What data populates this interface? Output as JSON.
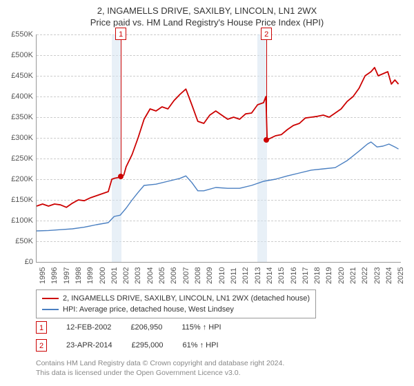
{
  "title": {
    "line1": "2, INGAMELLS DRIVE, SAXILBY, LINCOLN, LN1 2WX",
    "line2": "Price paid vs. HM Land Registry's House Price Index (HPI)"
  },
  "chart": {
    "type": "line",
    "x_year_start": 1995,
    "x_year_end": 2025.5,
    "xtick_years": [
      1995,
      1996,
      1997,
      1998,
      1999,
      2000,
      2001,
      2002,
      2003,
      2004,
      2005,
      2006,
      2007,
      2008,
      2009,
      2010,
      2011,
      2012,
      2013,
      2014,
      2015,
      2016,
      2017,
      2018,
      2019,
      2020,
      2021,
      2022,
      2023,
      2024,
      2025
    ],
    "ymin": 0,
    "ymax": 550000,
    "ytick_step": 50000,
    "ytick_labels": [
      "£0",
      "£50K",
      "£100K",
      "£150K",
      "£200K",
      "£250K",
      "£300K",
      "£350K",
      "£400K",
      "£450K",
      "£500K",
      "£550K"
    ],
    "grid_color": "#cccccc",
    "background_color": "#ffffff",
    "band_color": "#d6e4f0",
    "series": {
      "red": {
        "color": "#cc0000",
        "width": 1.8,
        "label": "2, INGAMELLS DRIVE, SAXILBY, LINCOLN, LN1 2WX (detached house)",
        "points": [
          [
            1995.0,
            135000
          ],
          [
            1995.5,
            140000
          ],
          [
            1996.0,
            135000
          ],
          [
            1996.5,
            140000
          ],
          [
            1997.0,
            138000
          ],
          [
            1997.5,
            132000
          ],
          [
            1998.0,
            142000
          ],
          [
            1998.5,
            150000
          ],
          [
            1999.0,
            148000
          ],
          [
            1999.5,
            155000
          ],
          [
            2000.0,
            160000
          ],
          [
            2000.5,
            165000
          ],
          [
            2001.0,
            170000
          ],
          [
            2001.3,
            200000
          ],
          [
            2001.5,
            202000
          ],
          [
            2002.0,
            205000
          ],
          [
            2002.115,
            206950
          ],
          [
            2002.3,
            210000
          ],
          [
            2002.5,
            230000
          ],
          [
            2003.0,
            260000
          ],
          [
            2003.5,
            300000
          ],
          [
            2004.0,
            345000
          ],
          [
            2004.5,
            370000
          ],
          [
            2005.0,
            365000
          ],
          [
            2005.5,
            375000
          ],
          [
            2006.0,
            370000
          ],
          [
            2006.5,
            390000
          ],
          [
            2007.0,
            405000
          ],
          [
            2007.5,
            418000
          ],
          [
            2008.0,
            380000
          ],
          [
            2008.5,
            340000
          ],
          [
            2009.0,
            335000
          ],
          [
            2009.5,
            355000
          ],
          [
            2010.0,
            365000
          ],
          [
            2010.5,
            355000
          ],
          [
            2011.0,
            345000
          ],
          [
            2011.5,
            350000
          ],
          [
            2012.0,
            345000
          ],
          [
            2012.5,
            358000
          ],
          [
            2013.0,
            360000
          ],
          [
            2013.5,
            380000
          ],
          [
            2014.0,
            385000
          ],
          [
            2014.2,
            400000
          ],
          [
            2014.308,
            295000
          ],
          [
            2014.32,
            295000
          ],
          [
            2014.5,
            298000
          ],
          [
            2015.0,
            305000
          ],
          [
            2015.5,
            308000
          ],
          [
            2016.0,
            320000
          ],
          [
            2016.5,
            330000
          ],
          [
            2017.0,
            335000
          ],
          [
            2017.5,
            348000
          ],
          [
            2018.0,
            350000
          ],
          [
            2018.5,
            352000
          ],
          [
            2019.0,
            355000
          ],
          [
            2019.5,
            350000
          ],
          [
            2020.0,
            360000
          ],
          [
            2020.5,
            370000
          ],
          [
            2021.0,
            388000
          ],
          [
            2021.5,
            400000
          ],
          [
            2022.0,
            420000
          ],
          [
            2022.5,
            450000
          ],
          [
            2023.0,
            460000
          ],
          [
            2023.3,
            470000
          ],
          [
            2023.6,
            450000
          ],
          [
            2024.0,
            455000
          ],
          [
            2024.4,
            460000
          ],
          [
            2024.7,
            430000
          ],
          [
            2025.0,
            440000
          ],
          [
            2025.3,
            430000
          ]
        ]
      },
      "blue": {
        "color": "#4a7fc1",
        "width": 1.4,
        "label": "HPI: Average price, detached house, West Lindsey",
        "points": [
          [
            1995.0,
            75000
          ],
          [
            1996.0,
            76000
          ],
          [
            1997.0,
            78000
          ],
          [
            1998.0,
            80000
          ],
          [
            1999.0,
            84000
          ],
          [
            2000.0,
            90000
          ],
          [
            2001.0,
            95000
          ],
          [
            2001.5,
            110000
          ],
          [
            2002.0,
            113000
          ],
          [
            2002.5,
            130000
          ],
          [
            2003.0,
            150000
          ],
          [
            2003.5,
            168000
          ],
          [
            2004.0,
            185000
          ],
          [
            2005.0,
            188000
          ],
          [
            2006.0,
            195000
          ],
          [
            2007.0,
            202000
          ],
          [
            2007.5,
            208000
          ],
          [
            2008.0,
            192000
          ],
          [
            2008.5,
            172000
          ],
          [
            2009.0,
            172000
          ],
          [
            2010.0,
            180000
          ],
          [
            2011.0,
            178000
          ],
          [
            2012.0,
            178000
          ],
          [
            2013.0,
            185000
          ],
          [
            2014.0,
            195000
          ],
          [
            2015.0,
            200000
          ],
          [
            2016.0,
            208000
          ],
          [
            2017.0,
            215000
          ],
          [
            2018.0,
            222000
          ],
          [
            2019.0,
            225000
          ],
          [
            2020.0,
            228000
          ],
          [
            2021.0,
            245000
          ],
          [
            2022.0,
            268000
          ],
          [
            2022.7,
            285000
          ],
          [
            2023.0,
            290000
          ],
          [
            2023.5,
            278000
          ],
          [
            2024.0,
            280000
          ],
          [
            2024.5,
            285000
          ],
          [
            2025.0,
            278000
          ],
          [
            2025.3,
            273000
          ]
        ]
      }
    },
    "bands": [
      {
        "start": 2001.3,
        "end": 2002.115
      },
      {
        "start": 2013.5,
        "end": 2014.308
      }
    ],
    "markers": [
      {
        "id": "1",
        "year": 2002.115,
        "price": 206950
      },
      {
        "id": "2",
        "year": 2014.308,
        "price": 295000
      }
    ]
  },
  "legend": {
    "row1": "2, INGAMELLS DRIVE, SAXILBY, LINCOLN, LN1 2WX (detached house)",
    "row2": "HPI: Average price, detached house, West Lindsey"
  },
  "sales": [
    {
      "id": "1",
      "date": "12-FEB-2002",
      "price": "£206,950",
      "pct": "115% ↑ HPI"
    },
    {
      "id": "2",
      "date": "23-APR-2014",
      "price": "£295,000",
      "pct": "61% ↑ HPI"
    }
  ],
  "footnote": {
    "line1": "Contains HM Land Registry data © Crown copyright and database right 2024.",
    "line2": "This data is licensed under the Open Government Licence v3.0."
  }
}
